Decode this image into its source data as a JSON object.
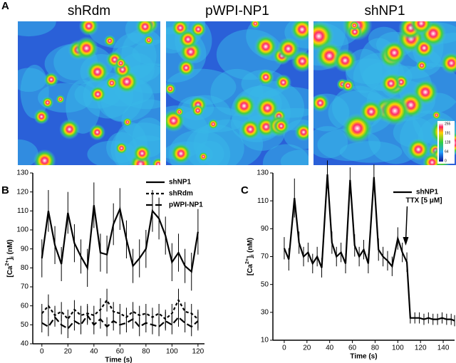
{
  "panel_labels": [
    "A",
    "B",
    "C"
  ],
  "panel_a": {
    "images": [
      "shRdm",
      "pWPI-NP1",
      "shNP1"
    ],
    "colorbar_ticks": [
      255,
      191,
      128,
      64,
      0
    ]
  },
  "chart_data": [
    {
      "type": "line",
      "xlabel": "Time (s)",
      "ylabel": "[Ca2+]i (nM)",
      "x": [
        0,
        5,
        10,
        15,
        20,
        25,
        30,
        35,
        40,
        45,
        50,
        55,
        60,
        65,
        70,
        75,
        80,
        85,
        90,
        95,
        100,
        105,
        110,
        115,
        120
      ],
      "xlim": [
        -7,
        125
      ],
      "xticks": [
        0,
        20,
        40,
        60,
        80,
        100,
        120
      ],
      "ylim": [
        40,
        130
      ],
      "yticks": [
        40,
        50,
        60,
        70,
        80,
        90,
        100,
        110,
        120,
        130
      ],
      "series": [
        {
          "name": "shNP1",
          "color": "#000000",
          "dash": "solid",
          "values": [
            85,
            110,
            92,
            82,
            109,
            93,
            86,
            80,
            113,
            88,
            87,
            103,
            111,
            95,
            81,
            85,
            90,
            110,
            106,
            97,
            83,
            88,
            81,
            78,
            99
          ],
          "errors": [
            10,
            11,
            10,
            9,
            11,
            10,
            9,
            10,
            12,
            10,
            10,
            11,
            11,
            10,
            9,
            10,
            10,
            11,
            11,
            10,
            10,
            10,
            9,
            10,
            12
          ]
        },
        {
          "name": "shRdm",
          "color": "#000000",
          "dash": "dashed",
          "values": [
            56,
            60,
            55,
            57,
            53,
            58,
            55,
            56,
            55,
            58,
            63,
            57,
            56,
            54,
            57,
            55,
            56,
            54,
            56,
            53,
            56,
            63,
            57,
            56,
            53
          ],
          "errors": [
            5,
            6,
            5,
            5,
            5,
            5,
            5,
            5,
            5,
            6,
            6,
            5,
            5,
            5,
            5,
            5,
            5,
            5,
            5,
            5,
            5,
            6,
            5,
            5,
            5
          ]
        },
        {
          "name": "pWPI-NP1",
          "color": "#000000",
          "dash": "longdash",
          "values": [
            51,
            49,
            54,
            50,
            48,
            52,
            50,
            55,
            50,
            53,
            49,
            52,
            50,
            51,
            53,
            49,
            51,
            50,
            49,
            52,
            50,
            54,
            51,
            49,
            52
          ],
          "errors": [
            5,
            5,
            5,
            5,
            5,
            5,
            5,
            5,
            5,
            5,
            5,
            5,
            5,
            5,
            5,
            5,
            5,
            5,
            5,
            5,
            5,
            5,
            5,
            5,
            5
          ]
        }
      ]
    },
    {
      "type": "line",
      "xlabel": "Time (s)",
      "ylabel": "[Ca2+]i (nM)",
      "annotation": "TTX [5 μM]",
      "annotation_x": 107,
      "x": [
        0,
        4,
        9,
        13,
        17,
        21,
        25,
        29,
        33,
        38,
        42,
        46,
        50,
        54,
        58,
        62,
        66,
        70,
        74,
        79,
        83,
        87,
        91,
        95,
        100,
        104,
        108,
        111,
        115,
        119,
        123,
        127,
        131,
        135,
        139,
        143,
        147,
        150
      ],
      "xlim": [
        -10,
        150
      ],
      "xticks": [
        0,
        20,
        40,
        60,
        80,
        100,
        120,
        140
      ],
      "ylim": [
        10,
        130
      ],
      "yticks": [
        10,
        30,
        50,
        70,
        90,
        110,
        130
      ],
      "series": [
        {
          "name": "shNP1",
          "color": "#000000",
          "dash": "solid",
          "values": [
            76,
            68,
            112,
            80,
            70,
            73,
            65,
            70,
            62,
            129,
            80,
            70,
            73,
            65,
            125,
            78,
            70,
            75,
            65,
            127,
            75,
            70,
            67,
            63,
            83,
            73,
            66,
            26,
            26,
            26,
            25,
            26,
            25,
            25,
            26,
            25,
            25,
            24
          ],
          "errors": [
            8,
            8,
            14,
            8,
            7,
            7,
            7,
            7,
            7,
            10,
            8,
            7,
            7,
            7,
            9,
            8,
            7,
            7,
            7,
            9,
            8,
            7,
            7,
            7,
            8,
            7,
            7,
            4,
            4,
            4,
            4,
            4,
            4,
            4,
            4,
            4,
            4,
            4
          ]
        }
      ]
    }
  ]
}
